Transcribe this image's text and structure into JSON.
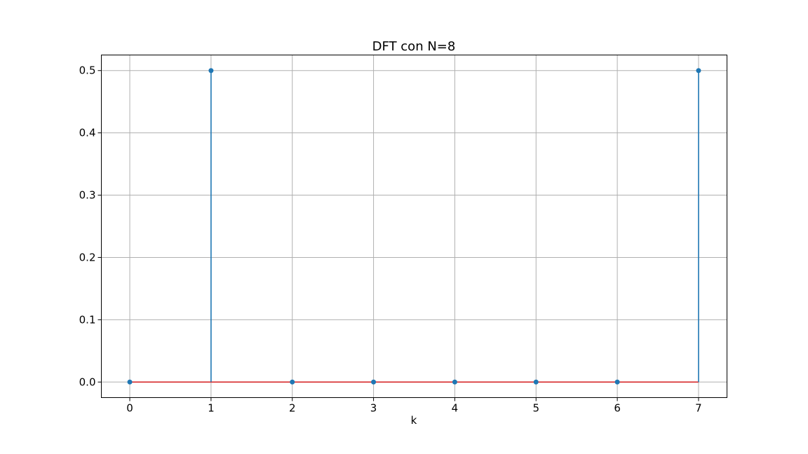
{
  "chart_data": {
    "type": "stem",
    "title": "DFT con N=8",
    "xlabel": "k",
    "ylabel": "",
    "x": [
      0,
      1,
      2,
      3,
      4,
      5,
      6,
      7
    ],
    "y": [
      0.0,
      0.5,
      0.0,
      0.0,
      0.0,
      0.0,
      0.0,
      0.5
    ],
    "xlim": [
      -0.35,
      7.35
    ],
    "ylim": [
      -0.025,
      0.525
    ],
    "xticks": [
      0,
      1,
      2,
      3,
      4,
      5,
      6,
      7
    ],
    "xtick_labels": [
      "0",
      "1",
      "2",
      "3",
      "4",
      "5",
      "6",
      "7"
    ],
    "yticks": [
      0.0,
      0.1,
      0.2,
      0.3,
      0.4,
      0.5
    ],
    "ytick_labels": [
      "0.0",
      "0.1",
      "0.2",
      "0.3",
      "0.4",
      "0.5"
    ],
    "grid": true,
    "colors": {
      "stem": "#1f77b4",
      "marker": "#1f77b4",
      "baseline": "#d62728",
      "grid": "#b0b0b0",
      "frame": "#000000"
    }
  }
}
